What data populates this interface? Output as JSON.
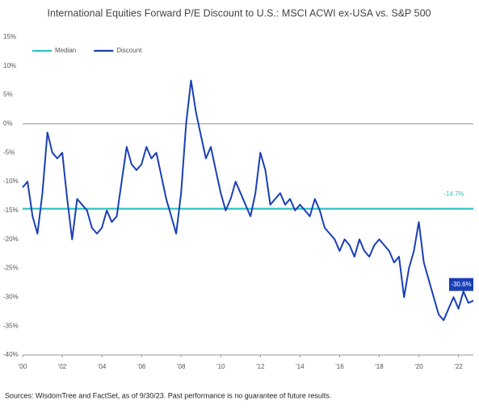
{
  "chart_data": {
    "type": "line",
    "title": "International Equities Forward P/E Discount to U.S.: MSCI ACWI ex-USA vs. S&P 500",
    "source": "Sources: WisdomTree and FactSet, as of 9/30/23. Past performance is no guarantee of future results.",
    "x": [
      2000,
      2000.25,
      2000.5,
      2000.75,
      2001,
      2001.25,
      2001.5,
      2001.75,
      2002,
      2002.25,
      2002.5,
      2002.75,
      2003,
      2003.25,
      2003.5,
      2003.75,
      2004,
      2004.25,
      2004.5,
      2004.75,
      2005,
      2005.25,
      2005.5,
      2005.75,
      2006,
      2006.25,
      2006.5,
      2006.75,
      2007,
      2007.25,
      2007.5,
      2007.75,
      2008,
      2008.25,
      2008.5,
      2008.75,
      2009,
      2009.25,
      2009.5,
      2009.75,
      2010,
      2010.25,
      2010.5,
      2010.75,
      2011,
      2011.25,
      2011.5,
      2011.75,
      2012,
      2012.25,
      2012.5,
      2012.75,
      2013,
      2013.25,
      2013.5,
      2013.75,
      2014,
      2014.25,
      2014.5,
      2014.75,
      2015,
      2015.25,
      2015.5,
      2015.75,
      2016,
      2016.25,
      2016.5,
      2016.75,
      2017,
      2017.25,
      2017.5,
      2017.75,
      2018,
      2018.25,
      2018.5,
      2018.75,
      2019,
      2019.25,
      2019.5,
      2019.75,
      2020,
      2020.25,
      2020.5,
      2020.75,
      2021,
      2021.25,
      2021.5,
      2021.75,
      2022,
      2022.25,
      2022.5,
      2022.75
    ],
    "series": [
      {
        "name": "Discount",
        "color": "#1a3fb5",
        "end_label": "-30.6%",
        "values": [
          -11,
          -10,
          -16,
          -19,
          -12,
          -1.5,
          -5,
          -6,
          -5,
          -13,
          -20,
          -13,
          -14,
          -15,
          -18,
          -19,
          -18,
          -15,
          -17,
          -16,
          -10,
          -4,
          -7,
          -8,
          -7,
          -4,
          -6,
          -5,
          -9,
          -13,
          -16,
          -19,
          -12,
          0,
          7.5,
          2,
          -2,
          -6,
          -4,
          -8,
          -12,
          -15,
          -13,
          -10,
          -12,
          -14,
          -16,
          -12,
          -5,
          -8,
          -14,
          -13,
          -12,
          -14,
          -13,
          -15,
          -14,
          -15,
          -16,
          -13,
          -15,
          -18,
          -19,
          -20,
          -22,
          -20,
          -21,
          -23,
          -20,
          -22,
          -23,
          -21,
          -20,
          -21,
          -22,
          -24,
          -23,
          -30,
          -25,
          -22,
          -17,
          -24,
          -27,
          -30,
          -33,
          -34,
          -32,
          -30,
          -32,
          -29,
          -31,
          -30.6
        ]
      }
    ],
    "median": {
      "name": "Median",
      "color": "#2ec4c4",
      "value": -14.7,
      "label": "-14.7%"
    },
    "xlim": [
      2000,
      2022.75
    ],
    "xticks": [
      {
        "value": 2000,
        "label": "'00"
      },
      {
        "value": 2002,
        "label": "'02"
      },
      {
        "value": 2004,
        "label": "'04"
      },
      {
        "value": 2006,
        "label": "'06"
      },
      {
        "value": 2008,
        "label": "'08"
      },
      {
        "value": 2010,
        "label": "'10"
      },
      {
        "value": 2012,
        "label": "'12"
      },
      {
        "value": 2014,
        "label": "'14"
      },
      {
        "value": 2016,
        "label": "'16"
      },
      {
        "value": 2018,
        "label": "'18"
      },
      {
        "value": 2020,
        "label": "'20"
      },
      {
        "value": 2022,
        "label": "'22"
      }
    ],
    "ylim": [
      -40,
      15
    ],
    "yticks": [
      {
        "value": 15,
        "label": "15%"
      },
      {
        "value": 10,
        "label": "10%"
      },
      {
        "value": 5,
        "label": "5%"
      },
      {
        "value": 0,
        "label": "0%"
      },
      {
        "value": -5,
        "label": "-5%"
      },
      {
        "value": -10,
        "label": "-10%"
      },
      {
        "value": -15,
        "label": "-15%"
      },
      {
        "value": -20,
        "label": "-20%"
      },
      {
        "value": -25,
        "label": "-25%"
      },
      {
        "value": -30,
        "label": "-30%"
      },
      {
        "value": -35,
        "label": "-35%"
      },
      {
        "value": -40,
        "label": "-40%"
      }
    ],
    "zero_line": true,
    "grid": false,
    "legend": "top-left"
  }
}
